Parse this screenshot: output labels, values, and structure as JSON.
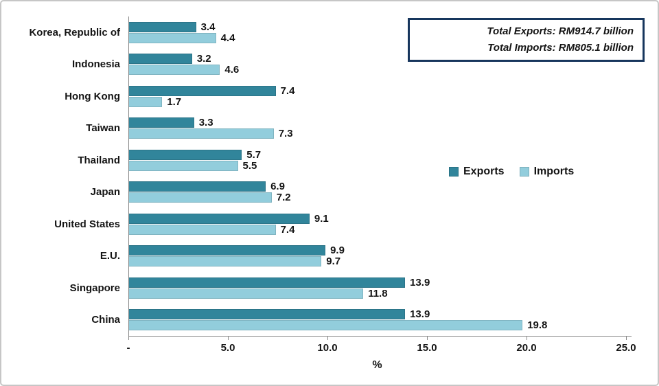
{
  "figure": {
    "background": "#ffffff",
    "border_color": "#c6c6c6"
  },
  "annotation_box": {
    "line1": "Total Exports: RM914.7 billion",
    "line2": "Total Imports: RM805.1 billion",
    "border_color": "#17365d"
  },
  "legend": {
    "items": [
      {
        "label": "Exports",
        "color": "#31859b"
      },
      {
        "label": "Imports",
        "color": "#92cddc"
      }
    ]
  },
  "chart_data": {
    "type": "bar",
    "orientation": "horizontal",
    "title": "",
    "xlabel": "%",
    "ylabel": "",
    "xlim": [
      0,
      25
    ],
    "grid": false,
    "legend_position": "middle-right",
    "value_labels": true,
    "categories": [
      "Korea, Republic of",
      "Indonesia",
      "Hong Kong",
      "Taiwan",
      "Thailand",
      "Japan",
      "United States",
      "E.U.",
      "Singapore",
      "China"
    ],
    "series": [
      {
        "name": "Exports",
        "color": "#31859b",
        "values": [
          3.4,
          3.2,
          7.4,
          3.3,
          5.7,
          6.9,
          9.1,
          9.9,
          13.9,
          13.9
        ]
      },
      {
        "name": "Imports",
        "color": "#92cddc",
        "values": [
          4.4,
          4.6,
          1.7,
          7.3,
          5.5,
          7.2,
          7.4,
          9.7,
          11.8,
          19.8
        ]
      }
    ],
    "x_ticks": [
      {
        "value": 0,
        "label": "-"
      },
      {
        "value": 5,
        "label": "5.0"
      },
      {
        "value": 10,
        "label": "10.0"
      },
      {
        "value": 15,
        "label": "15.0"
      },
      {
        "value": 20,
        "label": "20.0"
      },
      {
        "value": 25,
        "label": "25.0"
      }
    ]
  }
}
